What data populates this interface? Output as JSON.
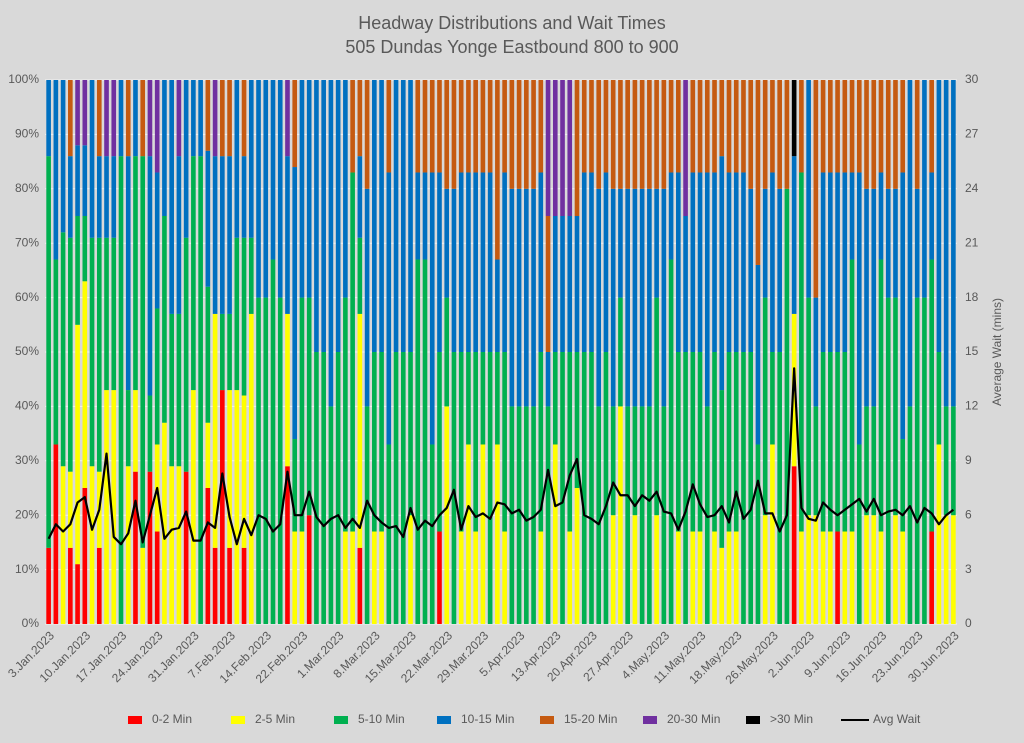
{
  "chart_data": {
    "type": "bar",
    "stacked": true,
    "title": "Headway Distributions and Wait Times",
    "subtitle": "505 Dundas  Yonge Eastbound 800 to 900",
    "y2label": "Average Wait (mins)",
    "categories": [
      "3.Jan.2023",
      null,
      null,
      null,
      null,
      "10.Jan.2023",
      null,
      null,
      null,
      null,
      "17.Jan.2023",
      null,
      null,
      null,
      null,
      "24.Jan.2023",
      null,
      null,
      null,
      null,
      "31.Jan.2023",
      null,
      null,
      null,
      null,
      "7.Feb.2023",
      null,
      null,
      null,
      null,
      "14.Feb.2023",
      null,
      null,
      null,
      null,
      "22.Feb.2023",
      null,
      null,
      null,
      null,
      "1.Mar.2023",
      null,
      null,
      null,
      null,
      "8.Mar.2023",
      null,
      null,
      null,
      null,
      "15.Mar.2023",
      null,
      null,
      null,
      null,
      "22.Mar.2023",
      null,
      null,
      null,
      null,
      "29.Mar.2023",
      null,
      null,
      null,
      null,
      "5.Apr.2023",
      null,
      null,
      null,
      null,
      "13.Apr.2023",
      null,
      null,
      null,
      null,
      "20.Apr.2023",
      null,
      null,
      null,
      null,
      "27.Apr.2023",
      null,
      null,
      null,
      null,
      "4.May.2023",
      null,
      null,
      null,
      null,
      "11.May.2023",
      null,
      null,
      null,
      null,
      "18.May.2023",
      null,
      null,
      null,
      null,
      "26.May.2023",
      null,
      null,
      null,
      null,
      "2.Jun.2023",
      null,
      null,
      null,
      null,
      "9.Jun.2023",
      null,
      null,
      null,
      null,
      "16.Jun.2023",
      null,
      null,
      null,
      null,
      "23.Jun.2023",
      null,
      null,
      null,
      null,
      "30.Jun.2023"
    ],
    "ylim": [
      0,
      100
    ],
    "yticks": [
      {
        "value": 0,
        "label": "0%"
      },
      {
        "value": 10,
        "label": "10%"
      },
      {
        "value": 20,
        "label": "20%"
      },
      {
        "value": 30,
        "label": "30%"
      },
      {
        "value": 40,
        "label": "40%"
      },
      {
        "value": 50,
        "label": "50%"
      },
      {
        "value": 60,
        "label": "60%"
      },
      {
        "value": 70,
        "label": "70%"
      },
      {
        "value": 80,
        "label": "80%"
      },
      {
        "value": 90,
        "label": "90%"
      },
      {
        "value": 100,
        "label": "100%"
      }
    ],
    "y2lim": [
      0,
      30
    ],
    "y2ticks": [
      0,
      3,
      6,
      9,
      12,
      15,
      18,
      21,
      24,
      27,
      30
    ],
    "grid": true,
    "legend": "bottom",
    "series": [
      {
        "name": "0-2 Min",
        "color": "#ff0000",
        "values": [
          14,
          33,
          0,
          14,
          11,
          25,
          0,
          14,
          0,
          0,
          0,
          0,
          28,
          0,
          28,
          17,
          0,
          0,
          0,
          28,
          0,
          0,
          25,
          14,
          43,
          14,
          0,
          14,
          0,
          0,
          0,
          0,
          0,
          29,
          0,
          0,
          20,
          0,
          0,
          0,
          0,
          0,
          0,
          14,
          0,
          0,
          0,
          0,
          0,
          0,
          0,
          0,
          0,
          0,
          17,
          0,
          0,
          0,
          0,
          0,
          0,
          0,
          0,
          0,
          0,
          0,
          0,
          0,
          0,
          0,
          0,
          0,
          0,
          0,
          0,
          0,
          0,
          0,
          0,
          0,
          0,
          0,
          0,
          0,
          0,
          0,
          0,
          0,
          0,
          0,
          0,
          0,
          0,
          0,
          0,
          0,
          0,
          0,
          0,
          0,
          0,
          0,
          0,
          29,
          0,
          0,
          0,
          0,
          0,
          17,
          0,
          0,
          0,
          0,
          0,
          0,
          0,
          0,
          0,
          0,
          0,
          0,
          17,
          0,
          0,
          0
        ]
      },
      {
        "name": "2-5 Min",
        "color": "#ffff00",
        "values": [
          0,
          0,
          29,
          14,
          44,
          38,
          29,
          14,
          43,
          43,
          0,
          29,
          15,
          14,
          0,
          16,
          37,
          29,
          29,
          0,
          43,
          0,
          12,
          43,
          0,
          29,
          43,
          28,
          57,
          0,
          0,
          0,
          0,
          28,
          17,
          17,
          0,
          0,
          0,
          0,
          0,
          17,
          17,
          43,
          0,
          17,
          17,
          0,
          0,
          0,
          20,
          0,
          0,
          0,
          0,
          40,
          0,
          17,
          33,
          17,
          33,
          0,
          33,
          17,
          0,
          0,
          0,
          0,
          17,
          0,
          33,
          0,
          17,
          25,
          0,
          0,
          0,
          0,
          20,
          40,
          0,
          20,
          0,
          0,
          20,
          0,
          0,
          17,
          0,
          17,
          17,
          0,
          17,
          14,
          17,
          17,
          0,
          0,
          0,
          20,
          33,
          0,
          0,
          28,
          17,
          20,
          20,
          17,
          17,
          0,
          17,
          17,
          0,
          20,
          20,
          17,
          0,
          20,
          17,
          0,
          0,
          0,
          0,
          33,
          20,
          20
        ]
      },
      {
        "name": "5-10 Min",
        "color": "#00b050",
        "values": [
          72,
          34,
          43,
          43,
          20,
          12,
          42,
          43,
          28,
          28,
          86,
          14,
          43,
          72,
          14,
          25,
          38,
          28,
          28,
          43,
          43,
          86,
          25,
          0,
          14,
          14,
          28,
          29,
          14,
          60,
          60,
          67,
          60,
          0,
          17,
          43,
          40,
          50,
          50,
          40,
          50,
          43,
          66,
          14,
          40,
          33,
          33,
          33,
          50,
          50,
          30,
          67,
          67,
          33,
          33,
          20,
          50,
          33,
          17,
          33,
          17,
          50,
          17,
          33,
          40,
          40,
          40,
          40,
          33,
          40,
          17,
          50,
          33,
          25,
          50,
          50,
          40,
          50,
          20,
          20,
          40,
          20,
          40,
          40,
          40,
          40,
          67,
          33,
          50,
          33,
          33,
          40,
          33,
          29,
          33,
          33,
          50,
          50,
          33,
          40,
          17,
          50,
          80,
          0,
          66,
          40,
          20,
          33,
          33,
          33,
          33,
          50,
          33,
          20,
          20,
          50,
          60,
          40,
          17,
          40,
          60,
          60,
          50,
          17,
          20,
          20
        ]
      },
      {
        "name": "10-15 Min",
        "color": "#0070c0",
        "values": [
          14,
          33,
          28,
          15,
          13,
          13,
          29,
          15,
          15,
          15,
          14,
          43,
          14,
          0,
          44,
          25,
          25,
          43,
          29,
          29,
          14,
          14,
          25,
          29,
          29,
          29,
          29,
          15,
          29,
          40,
          40,
          33,
          40,
          29,
          50,
          40,
          40,
          50,
          50,
          60,
          50,
          40,
          0,
          15,
          40,
          50,
          50,
          50,
          50,
          50,
          50,
          16,
          16,
          50,
          33,
          20,
          30,
          33,
          33,
          33,
          33,
          33,
          17,
          33,
          40,
          40,
          40,
          40,
          33,
          10,
          25,
          25,
          25,
          25,
          33,
          33,
          40,
          33,
          40,
          20,
          40,
          40,
          40,
          40,
          20,
          40,
          16,
          33,
          25,
          33,
          33,
          43,
          33,
          43,
          33,
          33,
          33,
          30,
          33,
          20,
          33,
          30,
          0,
          29,
          0,
          40,
          20,
          33,
          33,
          33,
          33,
          16,
          50,
          40,
          40,
          16,
          20,
          20,
          49,
          60,
          20,
          40,
          16,
          50,
          60,
          60
        ]
      },
      {
        "name": "15-20 Min",
        "color": "#c55a11",
        "values": [
          0,
          0,
          0,
          14,
          0,
          0,
          0,
          14,
          0,
          0,
          0,
          14,
          0,
          14,
          0,
          0,
          0,
          0,
          0,
          0,
          0,
          0,
          13,
          0,
          14,
          14,
          0,
          14,
          0,
          0,
          0,
          0,
          0,
          0,
          16,
          0,
          0,
          0,
          0,
          0,
          0,
          0,
          17,
          14,
          20,
          0,
          0,
          17,
          0,
          0,
          0,
          17,
          17,
          17,
          17,
          20,
          20,
          17,
          17,
          17,
          17,
          17,
          33,
          17,
          20,
          20,
          20,
          20,
          17,
          25,
          0,
          0,
          0,
          25,
          17,
          17,
          20,
          17,
          20,
          20,
          20,
          20,
          20,
          20,
          20,
          20,
          17,
          17,
          0,
          17,
          17,
          17,
          17,
          14,
          17,
          17,
          17,
          20,
          34,
          20,
          17,
          20,
          20,
          0,
          17,
          0,
          40,
          17,
          17,
          17,
          17,
          17,
          17,
          20,
          20,
          17,
          20,
          20,
          17,
          0,
          20,
          0,
          17,
          0,
          0,
          0
        ]
      },
      {
        "name": "20-30 Min",
        "color": "#7030a0",
        "values": [
          0,
          0,
          0,
          0,
          12,
          12,
          0,
          0,
          14,
          14,
          0,
          0,
          0,
          0,
          14,
          17,
          0,
          0,
          14,
          0,
          0,
          0,
          0,
          14,
          0,
          0,
          0,
          0,
          0,
          0,
          0,
          0,
          0,
          14,
          0,
          0,
          0,
          0,
          0,
          0,
          0,
          0,
          0,
          0,
          0,
          0,
          0,
          0,
          0,
          0,
          0,
          0,
          0,
          0,
          0,
          0,
          0,
          0,
          0,
          0,
          0,
          0,
          0,
          0,
          0,
          0,
          0,
          0,
          0,
          25,
          25,
          25,
          25,
          0,
          0,
          0,
          0,
          0,
          0,
          0,
          0,
          0,
          0,
          0,
          0,
          0,
          0,
          0,
          25,
          0,
          0,
          0,
          0,
          0,
          0,
          0,
          0,
          0,
          0,
          0,
          0,
          0,
          0,
          0,
          0,
          0,
          0,
          0,
          0,
          0,
          0,
          0,
          0,
          0,
          0,
          0,
          0,
          0,
          0,
          0,
          0,
          0,
          0,
          0,
          0,
          0
        ]
      },
      {
        "name": ">30 Min",
        "color": "#000000",
        "values": [
          0,
          0,
          0,
          0,
          0,
          0,
          0,
          0,
          0,
          0,
          0,
          0,
          0,
          0,
          0,
          0,
          0,
          0,
          0,
          0,
          0,
          0,
          0,
          0,
          0,
          0,
          0,
          0,
          0,
          0,
          0,
          0,
          0,
          0,
          0,
          0,
          0,
          0,
          0,
          0,
          0,
          0,
          0,
          0,
          0,
          0,
          0,
          0,
          0,
          0,
          0,
          0,
          0,
          0,
          0,
          0,
          0,
          0,
          0,
          0,
          0,
          0,
          0,
          0,
          0,
          0,
          0,
          0,
          0,
          0,
          0,
          0,
          0,
          0,
          0,
          0,
          0,
          0,
          0,
          0,
          0,
          0,
          0,
          0,
          0,
          0,
          0,
          0,
          0,
          0,
          0,
          0,
          0,
          0,
          0,
          0,
          0,
          0,
          0,
          0,
          0,
          0,
          0,
          14,
          0,
          0,
          0,
          0,
          0,
          0,
          0,
          0,
          0,
          0,
          0,
          0,
          0,
          0,
          0,
          0,
          0,
          0,
          0,
          0,
          0,
          0
        ]
      },
      {
        "name": "Avg Wait",
        "color": "#000000",
        "type": "line",
        "axis": "y2",
        "values": [
          4.7,
          5.5,
          5.1,
          5.5,
          6.7,
          7.0,
          5.2,
          6.3,
          9.4,
          4.8,
          4.4,
          5.0,
          6.8,
          4.5,
          6.0,
          7.5,
          4.7,
          5.2,
          5.3,
          6.2,
          4.6,
          4.6,
          5.6,
          5.3,
          8.3,
          5.9,
          4.4,
          5.8,
          4.9,
          6.0,
          5.8,
          5.1,
          5.5,
          8.4,
          6.0,
          6.0,
          7.3,
          5.9,
          5.4,
          5.8,
          6.0,
          5.3,
          5.8,
          5.3,
          6.8,
          6.0,
          5.6,
          5.3,
          5.4,
          4.8,
          6.4,
          5.2,
          5.7,
          5.4,
          6.0,
          6.4,
          7.4,
          5.2,
          6.5,
          5.9,
          6.1,
          5.8,
          6.7,
          6.6,
          6.1,
          6.3,
          5.7,
          5.9,
          6.3,
          8.5,
          6.5,
          6.7,
          8.2,
          9.1,
          6.0,
          5.8,
          5.5,
          6.5,
          7.8,
          7.1,
          7.1,
          6.5,
          7.1,
          6.8,
          7.3,
          6.2,
          6.1,
          5.2,
          6.2,
          7.7,
          6.6,
          5.9,
          6.0,
          6.5,
          5.6,
          7.3,
          5.8,
          6.3,
          7.9,
          6.1,
          6.1,
          5.1,
          6.0,
          14.1,
          6.4,
          5.8,
          5.7,
          6.7,
          6.3,
          6.0,
          6.3,
          6.6,
          6.9,
          6.2,
          6.9,
          6.0,
          6.2,
          6.3,
          6.0,
          6.5,
          5.6,
          6.4,
          6.1,
          5.5,
          6.0,
          6.3
        ]
      }
    ]
  }
}
